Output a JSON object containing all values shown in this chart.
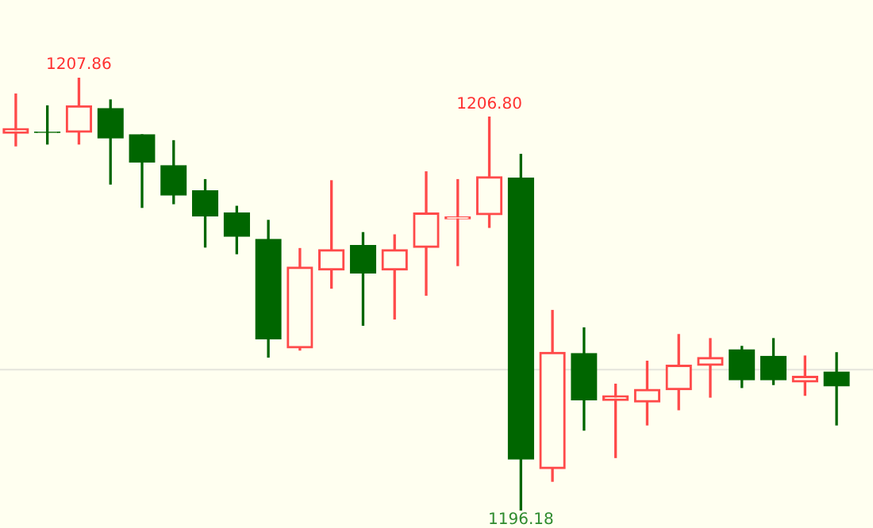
{
  "chart_data": {
    "type": "candlestick",
    "categories": [
      null,
      null,
      null,
      null,
      null,
      null,
      null,
      null,
      null,
      null,
      null,
      null,
      null,
      null,
      null,
      null,
      null,
      null,
      null,
      null,
      null,
      null,
      null,
      null,
      null,
      null,
      null
    ],
    "ohlc": [
      [
        1206.36,
        1207.42,
        1206.02,
        1206.49
      ],
      [
        1206.39,
        1207.1,
        1206.07,
        1206.38
      ],
      [
        1206.39,
        1207.86,
        1206.07,
        1207.1
      ],
      [
        1207.03,
        1207.26,
        1204.99,
        1206.23
      ],
      [
        1206.32,
        1206.32,
        1204.36,
        1205.58
      ],
      [
        1205.49,
        1206.16,
        1204.46,
        1204.69
      ],
      [
        1204.81,
        1205.11,
        1203.29,
        1204.13
      ],
      [
        1204.21,
        1204.39,
        1203.11,
        1203.58
      ],
      [
        1203.5,
        1204.01,
        1200.32,
        1200.81
      ],
      [
        1200.57,
        1203.25,
        1200.51,
        1202.75
      ],
      [
        1202.67,
        1205.08,
        1202.18,
        1203.22
      ],
      [
        1203.33,
        1203.68,
        1201.18,
        1202.59
      ],
      [
        1202.67,
        1203.62,
        1201.35,
        1203.22
      ],
      [
        1203.28,
        1205.32,
        1201.99,
        1204.21
      ],
      [
        1204.05,
        1205.11,
        1202.79,
        1204.1
      ],
      [
        1204.16,
        1206.8,
        1203.82,
        1205.19
      ],
      [
        1205.15,
        1205.79,
        1196.18,
        1197.57
      ],
      [
        1197.31,
        1201.58,
        1196.97,
        1200.45
      ],
      [
        1200.42,
        1201.11,
        1198.35,
        1199.17
      ],
      [
        1199.15,
        1199.59,
        1197.61,
        1199.28
      ],
      [
        1199.11,
        1200.21,
        1198.49,
        1199.45
      ],
      [
        1199.44,
        1200.93,
        1198.9,
        1200.1
      ],
      [
        1200.1,
        1200.82,
        1199.24,
        1200.31
      ],
      [
        1200.52,
        1200.61,
        1199.5,
        1199.71
      ],
      [
        1200.34,
        1200.82,
        1199.58,
        1199.71
      ],
      [
        1199.65,
        1200.35,
        1199.29,
        1199.8
      ],
      [
        1199.92,
        1200.44,
        1198.49,
        1199.54
      ]
    ],
    "colors": [
      "#ff4a4a",
      "#006600",
      "#ff4a4a",
      "#006600",
      "#006600",
      "#006600",
      "#006600",
      "#006600",
      "#006600",
      "#ff4a4a",
      "#ff4a4a",
      "#006600",
      "#ff4a4a",
      "#ff4a4a",
      "#ff4a4a",
      "#ff4a4a",
      "#006600",
      "#ff4a4a",
      "#006600",
      "#ff4a4a",
      "#ff4a4a",
      "#ff4a4a",
      "#ff4a4a",
      "#006600",
      "#006600",
      "#ff4a4a",
      "#006600"
    ],
    "annotations": [
      {
        "text": "1207.86",
        "y": 1207.86
      },
      {
        "text": "1206.80",
        "y": 1206.8
      },
      {
        "text": "1196.18",
        "y": 1196.18
      }
    ],
    "ref_lines": [
      {
        "axis": "y",
        "value": 1199.98,
        "color": "#e4e4dc"
      }
    ]
  }
}
